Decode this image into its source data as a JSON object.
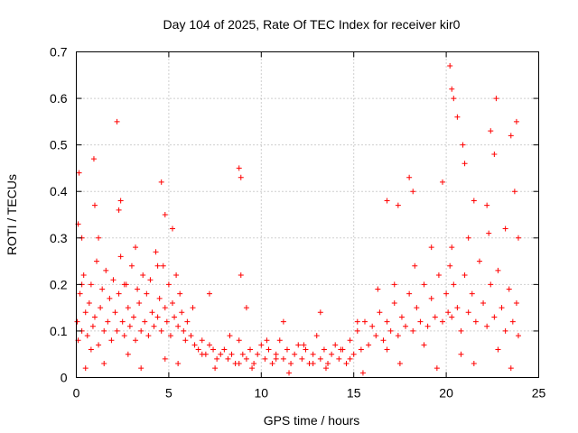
{
  "chart_data": {
    "type": "scatter",
    "title": "Day 104 of 2025, Rate Of TEC Index for receiver kir0",
    "xlabel": "GPS time / hours",
    "ylabel": "ROTI / TECUs",
    "xlim": [
      0,
      25
    ],
    "ylim": [
      0,
      0.7
    ],
    "xticks": [
      "0",
      "5",
      "10",
      "15",
      "20",
      "25"
    ],
    "yticks": [
      "0",
      "0.1",
      "0.2",
      "0.3",
      "0.4",
      "0.5",
      "0.6",
      "0.7"
    ],
    "grid": true,
    "marker": "plus",
    "color": "#ff0000",
    "series": [
      {
        "x": [
          0.05,
          0.1,
          0.2,
          0.3,
          0.4,
          0.5,
          0.6,
          0.7,
          0.8,
          0.9,
          1.0,
          1.1,
          1.2,
          1.3,
          1.4,
          1.5,
          1.6,
          1.7,
          1.8,
          1.9,
          2.0,
          2.1,
          2.2,
          2.3,
          2.4,
          2.5,
          2.6,
          2.7,
          2.8,
          2.9,
          3.0,
          3.1,
          3.2,
          3.3,
          3.4,
          3.5,
          3.6,
          3.7,
          3.8,
          3.9,
          4.0,
          4.1,
          4.2,
          4.3,
          4.4,
          4.5,
          4.6,
          4.7,
          4.8,
          4.9,
          5.0,
          5.1,
          5.2,
          5.3,
          5.4,
          5.5,
          5.6,
          5.7,
          5.8,
          5.9,
          6.0,
          6.2,
          6.4,
          6.6,
          6.8,
          7.0,
          7.2,
          7.4,
          7.6,
          7.8,
          8.0,
          8.2,
          8.4,
          8.6,
          8.8,
          8.9,
          9.0,
          9.2,
          9.4,
          9.6,
          9.8,
          10.0,
          10.2,
          10.4,
          10.6,
          10.8,
          11.0,
          11.2,
          11.4,
          11.6,
          11.8,
          12.0,
          12.2,
          12.4,
          12.6,
          12.8,
          13.0,
          13.2,
          13.4,
          13.6,
          13.8,
          14.0,
          14.2,
          14.4,
          14.6,
          14.8,
          15.0,
          15.2,
          15.4,
          15.6,
          15.8,
          16.0,
          16.2,
          16.4,
          16.6,
          16.8,
          17.0,
          17.2,
          17.4,
          17.6,
          17.8,
          18.0,
          18.2,
          18.4,
          18.6,
          18.8,
          19.0,
          19.2,
          19.4,
          19.6,
          19.8,
          20.0,
          20.1,
          20.2,
          20.3,
          20.4,
          20.6,
          20.8,
          21.0,
          21.2,
          21.4,
          21.6,
          21.8,
          22.0,
          22.2,
          22.4,
          22.6,
          22.8,
          23.0,
          23.2,
          23.4,
          23.6,
          23.8,
          23.9,
          0.15,
          0.95,
          2.2,
          2.4,
          4.6,
          8.8,
          8.9,
          18.0,
          18.2,
          19.8,
          20.2,
          20.3,
          20.4,
          20.6,
          20.9,
          21.0,
          22.4,
          22.6,
          22.7,
          23.5,
          23.8,
          1.0,
          0.1,
          0.3,
          2.3,
          4.8,
          16.8,
          17.4,
          21.5,
          22.2,
          23.7,
          0.5,
          1.5,
          3.5,
          5.5,
          7.5,
          9.5,
          11.5,
          13.5,
          15.5,
          17.5,
          19.5,
          21.5,
          23.5,
          1.2,
          3.2,
          5.2,
          7.2,
          9.2,
          11.2,
          13.2,
          15.2,
          17.2,
          19.2,
          21.2,
          23.2,
          0.8,
          2.8,
          4.8,
          6.8,
          8.8,
          10.8,
          12.8,
          14.8,
          16.8,
          18.8,
          20.8,
          22.8,
          0.3,
          2.6,
          4.4,
          6.3,
          8.3,
          10.3,
          12.3,
          14.3,
          16.3,
          18.3,
          20.3,
          22.3,
          23.9
        ],
        "y": [
          0.12,
          0.08,
          0.18,
          0.1,
          0.22,
          0.14,
          0.09,
          0.16,
          0.2,
          0.11,
          0.13,
          0.25,
          0.07,
          0.15,
          0.19,
          0.1,
          0.23,
          0.12,
          0.17,
          0.08,
          0.21,
          0.14,
          0.1,
          0.18,
          0.26,
          0.12,
          0.09,
          0.2,
          0.15,
          0.11,
          0.24,
          0.13,
          0.08,
          0.19,
          0.16,
          0.1,
          0.22,
          0.12,
          0.18,
          0.09,
          0.21,
          0.14,
          0.11,
          0.27,
          0.13,
          0.17,
          0.1,
          0.24,
          0.15,
          0.12,
          0.2,
          0.09,
          0.16,
          0.13,
          0.22,
          0.11,
          0.18,
          0.14,
          0.1,
          0.08,
          0.12,
          0.09,
          0.07,
          0.06,
          0.08,
          0.05,
          0.07,
          0.06,
          0.04,
          0.05,
          0.06,
          0.04,
          0.05,
          0.03,
          0.08,
          0.22,
          0.05,
          0.04,
          0.06,
          0.03,
          0.05,
          0.07,
          0.04,
          0.06,
          0.03,
          0.05,
          0.08,
          0.04,
          0.06,
          0.03,
          0.05,
          0.07,
          0.04,
          0.06,
          0.03,
          0.05,
          0.09,
          0.04,
          0.06,
          0.03,
          0.05,
          0.07,
          0.04,
          0.06,
          0.03,
          0.08,
          0.05,
          0.1,
          0.06,
          0.12,
          0.07,
          0.11,
          0.09,
          0.14,
          0.08,
          0.12,
          0.1,
          0.16,
          0.09,
          0.13,
          0.11,
          0.18,
          0.1,
          0.15,
          0.12,
          0.2,
          0.11,
          0.17,
          0.13,
          0.22,
          0.12,
          0.18,
          0.14,
          0.24,
          0.13,
          0.2,
          0.15,
          0.1,
          0.22,
          0.14,
          0.18,
          0.12,
          0.25,
          0.16,
          0.11,
          0.2,
          0.13,
          0.23,
          0.15,
          0.1,
          0.19,
          0.12,
          0.16,
          0.09,
          0.44,
          0.47,
          0.55,
          0.38,
          0.42,
          0.45,
          0.43,
          0.43,
          0.4,
          0.42,
          0.67,
          0.62,
          0.6,
          0.56,
          0.5,
          0.46,
          0.53,
          0.48,
          0.6,
          0.52,
          0.55,
          0.37,
          0.33,
          0.3,
          0.36,
          0.35,
          0.38,
          0.37,
          0.38,
          0.37,
          0.4,
          0.02,
          0.03,
          0.02,
          0.03,
          0.02,
          0.02,
          0.01,
          0.02,
          0.01,
          0.03,
          0.02,
          0.03,
          0.02,
          0.3,
          0.28,
          0.32,
          0.18,
          0.15,
          0.12,
          0.14,
          0.12,
          0.2,
          0.28,
          0.3,
          0.32,
          0.06,
          0.05,
          0.04,
          0.05,
          0.03,
          0.04,
          0.03,
          0.04,
          0.06,
          0.07,
          0.05,
          0.06,
          0.2,
          0.2,
          0.24,
          0.15,
          0.09,
          0.08,
          0.07,
          0.06,
          0.19,
          0.24,
          0.28,
          0.31,
          0.3
        ]
      }
    ]
  }
}
